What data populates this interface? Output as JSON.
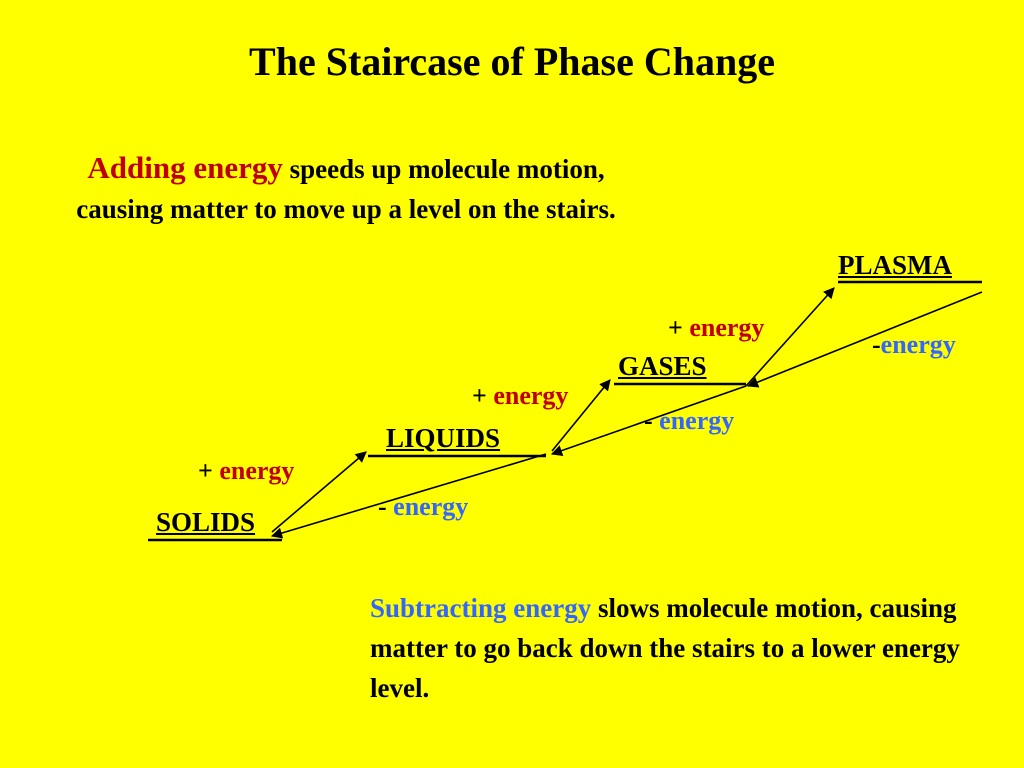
{
  "title": "The Staircase of Phase Change",
  "adding": {
    "lead": "Adding energy",
    "text": " speeds up molecule motion, causing matter to move up a level on the stairs."
  },
  "subtracting": {
    "lead": "Subtracting energy",
    "text": " slows molecule motion, causing matter to go back down the stairs to a lower energy level."
  },
  "levels": {
    "solids": "SOLIDS",
    "liquids": "LIQUIDS",
    "gases": "GASES",
    "plasma": "PLASMA"
  },
  "transitions": {
    "up_sign": "+",
    "down_sign": "-",
    "word": "energy"
  },
  "colors": {
    "background": "#FFFF00",
    "add": "#C00000",
    "subtract": "#3366FF",
    "text": "#000000"
  }
}
